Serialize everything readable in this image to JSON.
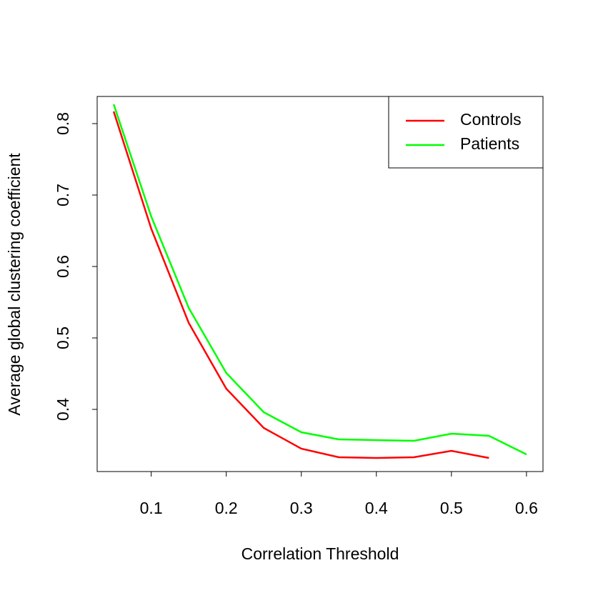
{
  "chart_data": {
    "type": "line",
    "x_label": "Correlation Threshold",
    "y_label": "Average global clustering coefficient",
    "x": [
      0.05,
      0.1,
      0.15,
      0.2,
      0.25,
      0.3,
      0.35,
      0.4,
      0.45,
      0.5,
      0.55,
      0.6
    ],
    "series": [
      {
        "name": "Controls",
        "color": "#ff0000",
        "values": [
          0.817,
          0.653,
          0.521,
          0.429,
          0.374,
          0.345,
          0.333,
          0.332,
          0.333,
          0.342,
          0.332,
          null
        ]
      },
      {
        "name": "Patients",
        "color": "#00ff00",
        "values": [
          0.827,
          0.67,
          0.542,
          0.451,
          0.396,
          0.368,
          0.358,
          0.357,
          0.356,
          0.366,
          0.363,
          0.337
        ]
      }
    ],
    "xlim": [
      0.028,
      0.622
    ],
    "ylim": [
      0.313,
      0.838
    ],
    "xticks": [
      0.1,
      0.2,
      0.3,
      0.4,
      0.5,
      0.6
    ],
    "yticks": [
      0.4,
      0.5,
      0.6,
      0.7,
      0.8
    ],
    "legend": "top-right",
    "grid": false
  }
}
